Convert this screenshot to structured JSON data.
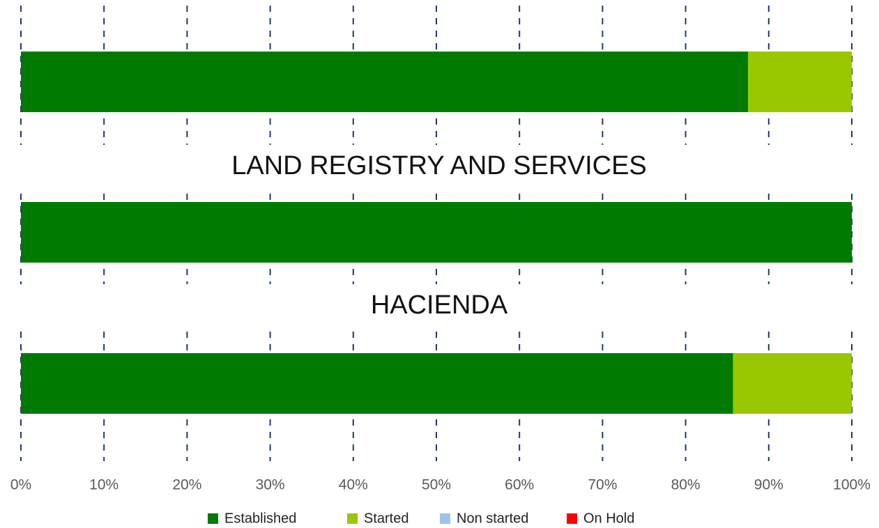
{
  "chart_data": {
    "type": "stacked-bar-horizontal",
    "categories": [
      null,
      "LAND REGISTRY AND SERVICES",
      "HACIENDA"
    ],
    "series": [
      {
        "name": "Established",
        "color": "#007a00",
        "values": [
          87.5,
          100,
          85.7
        ]
      },
      {
        "name": "Started",
        "color": "#99c700",
        "values": [
          12.5,
          0,
          14.3
        ]
      },
      {
        "name": "Non started",
        "color": "#9dc3e6",
        "values": [
          0,
          0,
          0
        ]
      },
      {
        "name": "On Hold",
        "color": "#ff0000",
        "values": [
          0,
          0,
          0
        ]
      }
    ],
    "xlim": [
      0,
      100
    ],
    "xticks": [
      {
        "value": 0,
        "label": "0%"
      },
      {
        "value": 10,
        "label": "10%"
      },
      {
        "value": 20,
        "label": "20%"
      },
      {
        "value": 30,
        "label": "30%"
      },
      {
        "value": 40,
        "label": "40%"
      },
      {
        "value": 50,
        "label": "50%"
      },
      {
        "value": 60,
        "label": "60%"
      },
      {
        "value": 70,
        "label": "70%"
      },
      {
        "value": 80,
        "label": "80%"
      },
      {
        "value": 90,
        "label": "90%"
      },
      {
        "value": 100,
        "label": "100%"
      }
    ],
    "grid": true,
    "grid_color": "#1f3864",
    "legend": "bottom"
  }
}
